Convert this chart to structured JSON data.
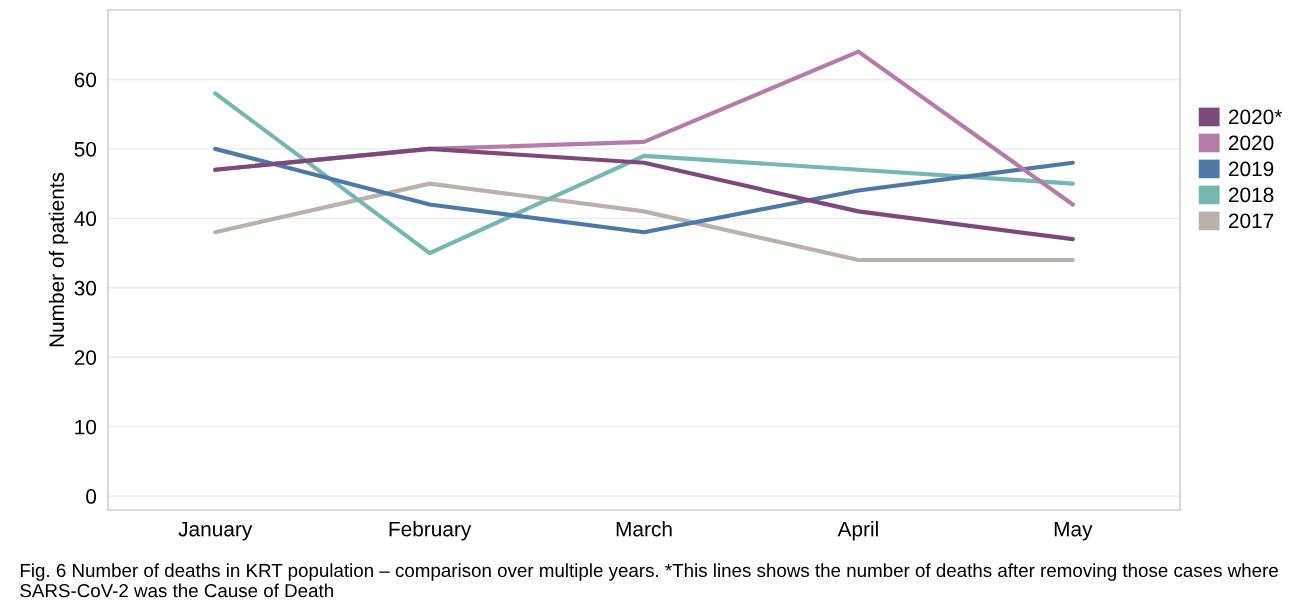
{
  "chart_data": {
    "type": "line",
    "ylabel": "Number of patients",
    "categories": [
      "January",
      "February",
      "March",
      "April",
      "May"
    ],
    "series": [
      {
        "name": "2020*",
        "color": "#7b4a7b",
        "values": [
          47,
          50,
          48,
          41,
          37
        ]
      },
      {
        "name": "2020",
        "color": "#b67ca8",
        "values": [
          47,
          50,
          51,
          64,
          42
        ]
      },
      {
        "name": "2019",
        "color": "#4e79a7",
        "values": [
          50,
          42,
          38,
          44,
          48
        ]
      },
      {
        "name": "2018",
        "color": "#76b7b2",
        "values": [
          58,
          35,
          49,
          47,
          45
        ]
      },
      {
        "name": "2017",
        "color": "#bab0ac",
        "values": [
          38,
          45,
          41,
          34,
          34
        ]
      }
    ],
    "ylim": [
      -2,
      70
    ],
    "yticks": [
      0,
      10,
      20,
      30,
      40,
      50,
      60
    ],
    "grid": "y",
    "legend": "right",
    "marker": "none",
    "line_style": "solid",
    "annotations": [
      "Fig. 6 Number of deaths in KRT population – comparison over multiple years. *This lines shows the number of deaths after removing those cases where SARS-CoV-2 was the Cause of Death"
    ]
  }
}
